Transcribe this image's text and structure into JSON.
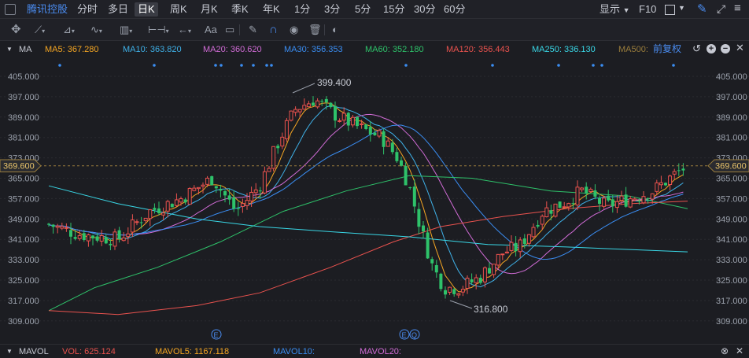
{
  "top": {
    "stock_name": "腾讯控股",
    "tabs": [
      "分时",
      "多日",
      "日K",
      "周K",
      "月K",
      "季K",
      "年K",
      "1分",
      "3分",
      "5分",
      "15分",
      "30分",
      "60分"
    ],
    "active_tab": "日K",
    "display_label": "显示",
    "f10_label": "F10"
  },
  "toolbar": {
    "text_tool_label": "Aa"
  },
  "ma": {
    "label": "MA",
    "items": [
      {
        "text": "MA5: 367.280",
        "color": "#f5a623"
      },
      {
        "text": "MA10: 363.820",
        "color": "#3fb1e8"
      },
      {
        "text": "MA20: 360.620",
        "color": "#d16cd6"
      },
      {
        "text": "MA30: 356.353",
        "color": "#3a8df2"
      },
      {
        "text": "MA60: 352.180",
        "color": "#2ec26a"
      },
      {
        "text": "MA120: 356.443",
        "color": "#e9524e"
      },
      {
        "text": "MA250: 336.130",
        "color": "#39d7e6"
      },
      {
        "text": "MA500:",
        "color": "#9a7d3c"
      }
    ],
    "restore_label": "前复权"
  },
  "axis": {
    "ticks": [
      "405.000",
      "397.000",
      "389.000",
      "381.000",
      "373.000",
      "365.000",
      "357.000",
      "349.000",
      "341.000",
      "333.000",
      "325.000",
      "317.000",
      "309.000"
    ],
    "current_price": "369.600",
    "high_label": "399.400",
    "low_label": "316.800"
  },
  "volume": {
    "label": "MAVOL",
    "vol": "VOL: 625.124",
    "mavol5": "MAVOL5: 1167.118",
    "mavol10": "MAVOL10:",
    "mavol20": "MAVOL20:"
  },
  "events": [
    "E",
    "E",
    "Q"
  ],
  "colors": {
    "up": "#e9524e",
    "down": "#2ec26a",
    "bg": "#1c1d22",
    "accent": "#4a8cf0"
  }
}
